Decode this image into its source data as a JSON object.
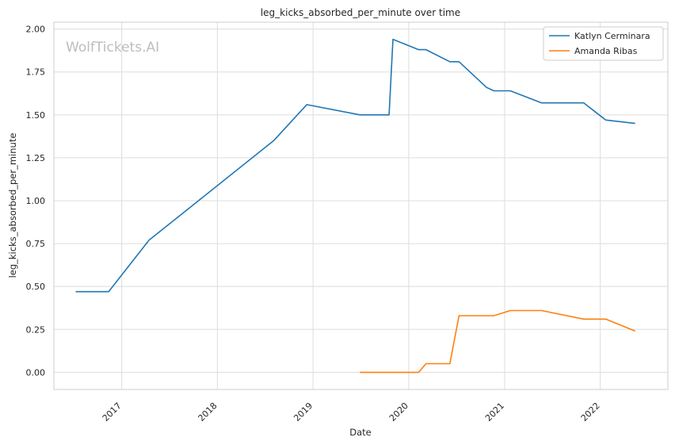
{
  "chart_data": {
    "type": "line",
    "title": "leg_kicks_absorbed_per_minute over time",
    "xlabel": "Date",
    "ylabel": "leg_kicks_absorbed_per_minute",
    "watermark": "WolfTickets.AI",
    "xlim": [
      "2016-04-17",
      "2022-09-16"
    ],
    "ylim": [
      -0.1,
      2.04
    ],
    "x_ticks": [
      "2017-01-01",
      "2018-01-01",
      "2019-01-01",
      "2020-01-01",
      "2021-01-01",
      "2022-01-01"
    ],
    "x_tick_labels": [
      "2017",
      "2018",
      "2019",
      "2020",
      "2021",
      "2022"
    ],
    "y_ticks": [
      0.0,
      0.25,
      0.5,
      0.75,
      1.0,
      1.25,
      1.5,
      1.75,
      2.0
    ],
    "y_tick_labels": [
      "0.00",
      "0.25",
      "0.50",
      "0.75",
      "1.00",
      "1.25",
      "1.50",
      "1.75",
      "2.00"
    ],
    "grid": true,
    "legend_position": "top-right",
    "series": [
      {
        "name": "Katlyn Cerminara",
        "color": "#1f77b4",
        "points": [
          [
            "2016-07-09",
            0.47
          ],
          [
            "2016-11-12",
            0.47
          ],
          [
            "2017-04-15",
            0.77
          ],
          [
            "2018-08-04",
            1.35
          ],
          [
            "2018-12-08",
            1.56
          ],
          [
            "2019-06-29",
            1.5
          ],
          [
            "2019-10-18",
            1.5
          ],
          [
            "2019-11-02",
            1.94
          ],
          [
            "2020-02-08",
            1.88
          ],
          [
            "2020-03-07",
            1.88
          ],
          [
            "2020-06-06",
            1.81
          ],
          [
            "2020-07-11",
            1.81
          ],
          [
            "2020-10-24",
            1.66
          ],
          [
            "2020-11-21",
            1.64
          ],
          [
            "2021-01-23",
            1.64
          ],
          [
            "2021-05-22",
            1.57
          ],
          [
            "2021-10-30",
            1.57
          ],
          [
            "2022-01-22",
            1.47
          ],
          [
            "2022-05-14",
            1.45
          ]
        ]
      },
      {
        "name": "Amanda Ribas",
        "color": "#ff7f0e",
        "points": [
          [
            "2019-06-29",
            0.0
          ],
          [
            "2020-02-08",
            0.0
          ],
          [
            "2020-03-07",
            0.05
          ],
          [
            "2020-06-06",
            0.05
          ],
          [
            "2020-07-11",
            0.33
          ],
          [
            "2020-11-21",
            0.33
          ],
          [
            "2021-01-23",
            0.36
          ],
          [
            "2021-05-22",
            0.36
          ],
          [
            "2021-10-30",
            0.31
          ],
          [
            "2022-01-22",
            0.31
          ],
          [
            "2022-05-14",
            0.24
          ]
        ]
      }
    ]
  }
}
